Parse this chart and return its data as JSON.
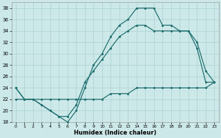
{
  "xlabel": "Humidex (Indice chaleur)",
  "ylabel": "",
  "xlim": [
    -0.5,
    23.5
  ],
  "ylim": [
    18,
    39
  ],
  "xticks": [
    0,
    1,
    2,
    3,
    4,
    5,
    6,
    7,
    8,
    9,
    10,
    11,
    12,
    13,
    14,
    15,
    16,
    17,
    18,
    19,
    20,
    21,
    22,
    23
  ],
  "yticks": [
    18,
    20,
    22,
    24,
    26,
    28,
    30,
    32,
    34,
    36,
    38
  ],
  "bg_color": "#cce8e8",
  "grid_color": "#b0d4d4",
  "line_color": "#1e6e6e",
  "line1_y": [
    24,
    22,
    22,
    21,
    20,
    19,
    18,
    20,
    24,
    28,
    30,
    33,
    35,
    36,
    38,
    38,
    38,
    35,
    35,
    34,
    34,
    31,
    25,
    25
  ],
  "line2_y": [
    24,
    22,
    22,
    21,
    20,
    19,
    19,
    21,
    25,
    27,
    29,
    31,
    33,
    34,
    35,
    35,
    34,
    34,
    34,
    34,
    34,
    32,
    27,
    25
  ],
  "line3_y": [
    22,
    22,
    22,
    22,
    22,
    22,
    22,
    22,
    22,
    22,
    22,
    23,
    23,
    23,
    24,
    24,
    24,
    24,
    24,
    24,
    24,
    24,
    24,
    25
  ]
}
